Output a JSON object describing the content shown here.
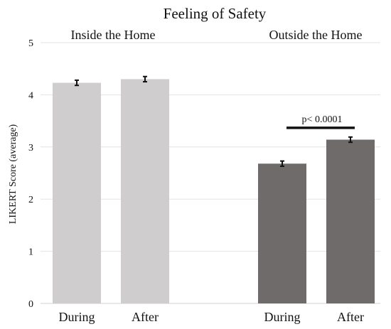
{
  "chart_data": {
    "type": "bar",
    "title": "Feeling of Safety",
    "ylabel": "LIKERT Score (average)",
    "ylim": [
      0,
      5
    ],
    "yticks": [
      "0",
      "1",
      "2",
      "3",
      "4",
      "5"
    ],
    "grid": true,
    "groups": [
      {
        "label": "Inside the Home",
        "color": "#cfcdcd",
        "bars": [
          {
            "category": "During",
            "value": 4.23,
            "error": 0.05
          },
          {
            "category": "After",
            "value": 4.3,
            "error": 0.05
          }
        ]
      },
      {
        "label": "Outside the Home",
        "color": "#6f6b6a",
        "bars": [
          {
            "category": "During",
            "value": 2.68,
            "error": 0.05
          },
          {
            "category": "After",
            "value": 3.14,
            "error": 0.05
          }
        ]
      }
    ],
    "annotation": {
      "text": "p< 0.0001",
      "group": 1
    }
  }
}
